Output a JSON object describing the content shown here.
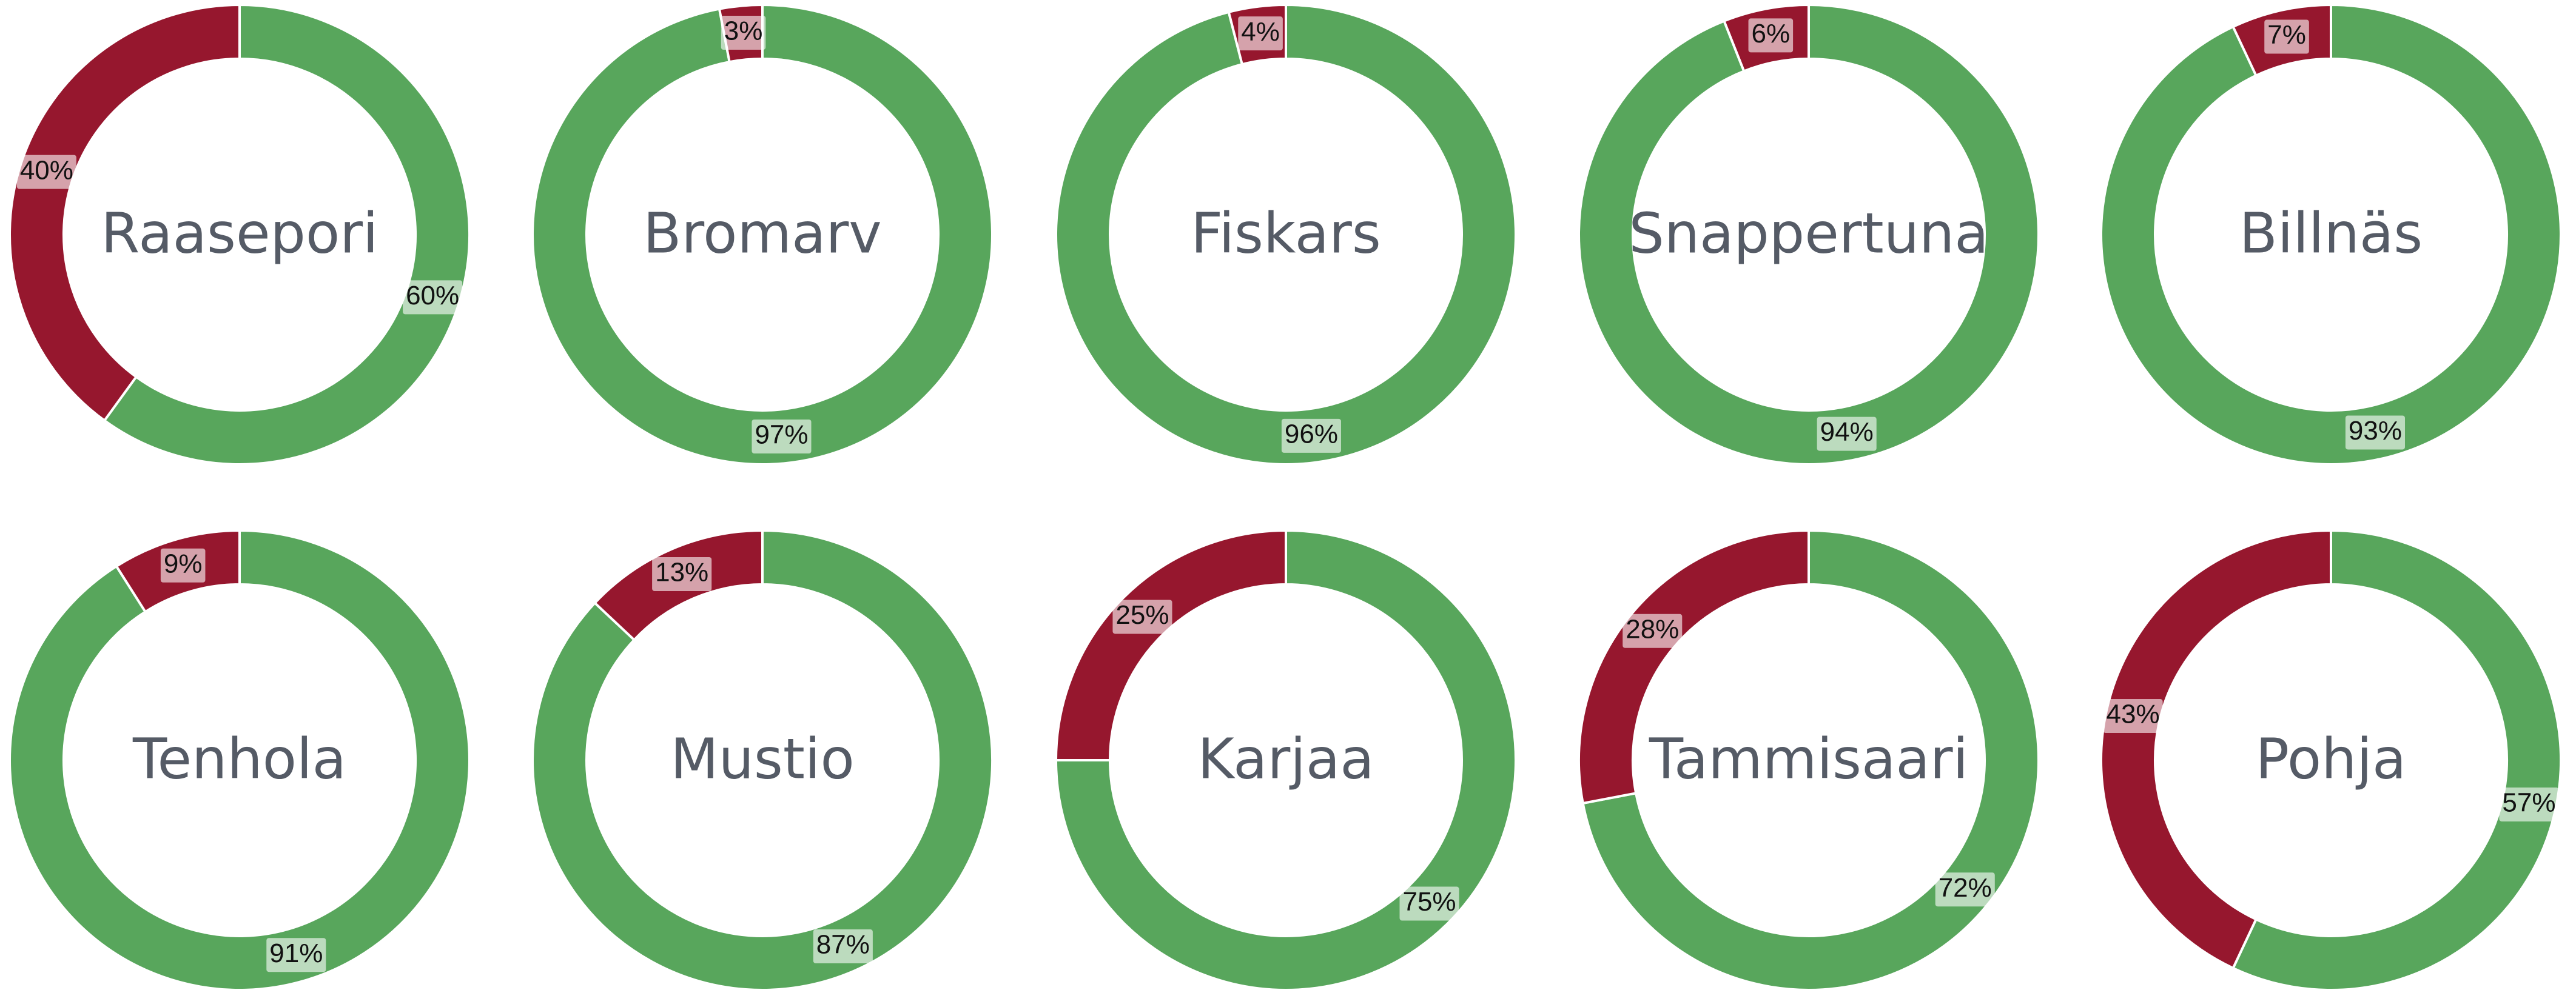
{
  "chart_data": [
    {
      "type": "pie",
      "title": "Raasepori",
      "values": [
        60,
        40
      ],
      "value_labels": [
        "60%",
        "40%"
      ],
      "colors": [
        "#58a65c",
        "#96172e"
      ]
    },
    {
      "type": "pie",
      "title": "Bromarv",
      "values": [
        97,
        3
      ],
      "value_labels": [
        "97%",
        "3%"
      ],
      "colors": [
        "#58a65c",
        "#96172e"
      ]
    },
    {
      "type": "pie",
      "title": "Fiskars",
      "values": [
        96,
        4
      ],
      "value_labels": [
        "96%",
        "4%"
      ],
      "colors": [
        "#58a65c",
        "#96172e"
      ]
    },
    {
      "type": "pie",
      "title": "Snappertuna",
      "values": [
        94,
        6
      ],
      "value_labels": [
        "94%",
        "6%"
      ],
      "colors": [
        "#58a65c",
        "#96172e"
      ]
    },
    {
      "type": "pie",
      "title": "Billnäs",
      "values": [
        93,
        7
      ],
      "value_labels": [
        "93%",
        "7%"
      ],
      "colors": [
        "#58a65c",
        "#96172e"
      ]
    },
    {
      "type": "pie",
      "title": "Tenhola",
      "values": [
        91,
        9
      ],
      "value_labels": [
        "91%",
        "9%"
      ],
      "colors": [
        "#58a65c",
        "#96172e"
      ]
    },
    {
      "type": "pie",
      "title": "Mustio",
      "values": [
        87,
        13
      ],
      "value_labels": [
        "87%",
        "13%"
      ],
      "colors": [
        "#58a65c",
        "#96172e"
      ]
    },
    {
      "type": "pie",
      "title": "Karjaa",
      "values": [
        75,
        25
      ],
      "value_labels": [
        "75%",
        "25%"
      ],
      "colors": [
        "#58a65c",
        "#96172e"
      ]
    },
    {
      "type": "pie",
      "title": "Tammisaari",
      "values": [
        72,
        28
      ],
      "value_labels": [
        "72%",
        "28%"
      ],
      "colors": [
        "#58a65c",
        "#96172e"
      ]
    },
    {
      "type": "pie",
      "title": "Pohja",
      "values": [
        57,
        43
      ],
      "value_labels": [
        "57%",
        "43%"
      ],
      "colors": [
        "#58a65c",
        "#96172e"
      ]
    }
  ]
}
